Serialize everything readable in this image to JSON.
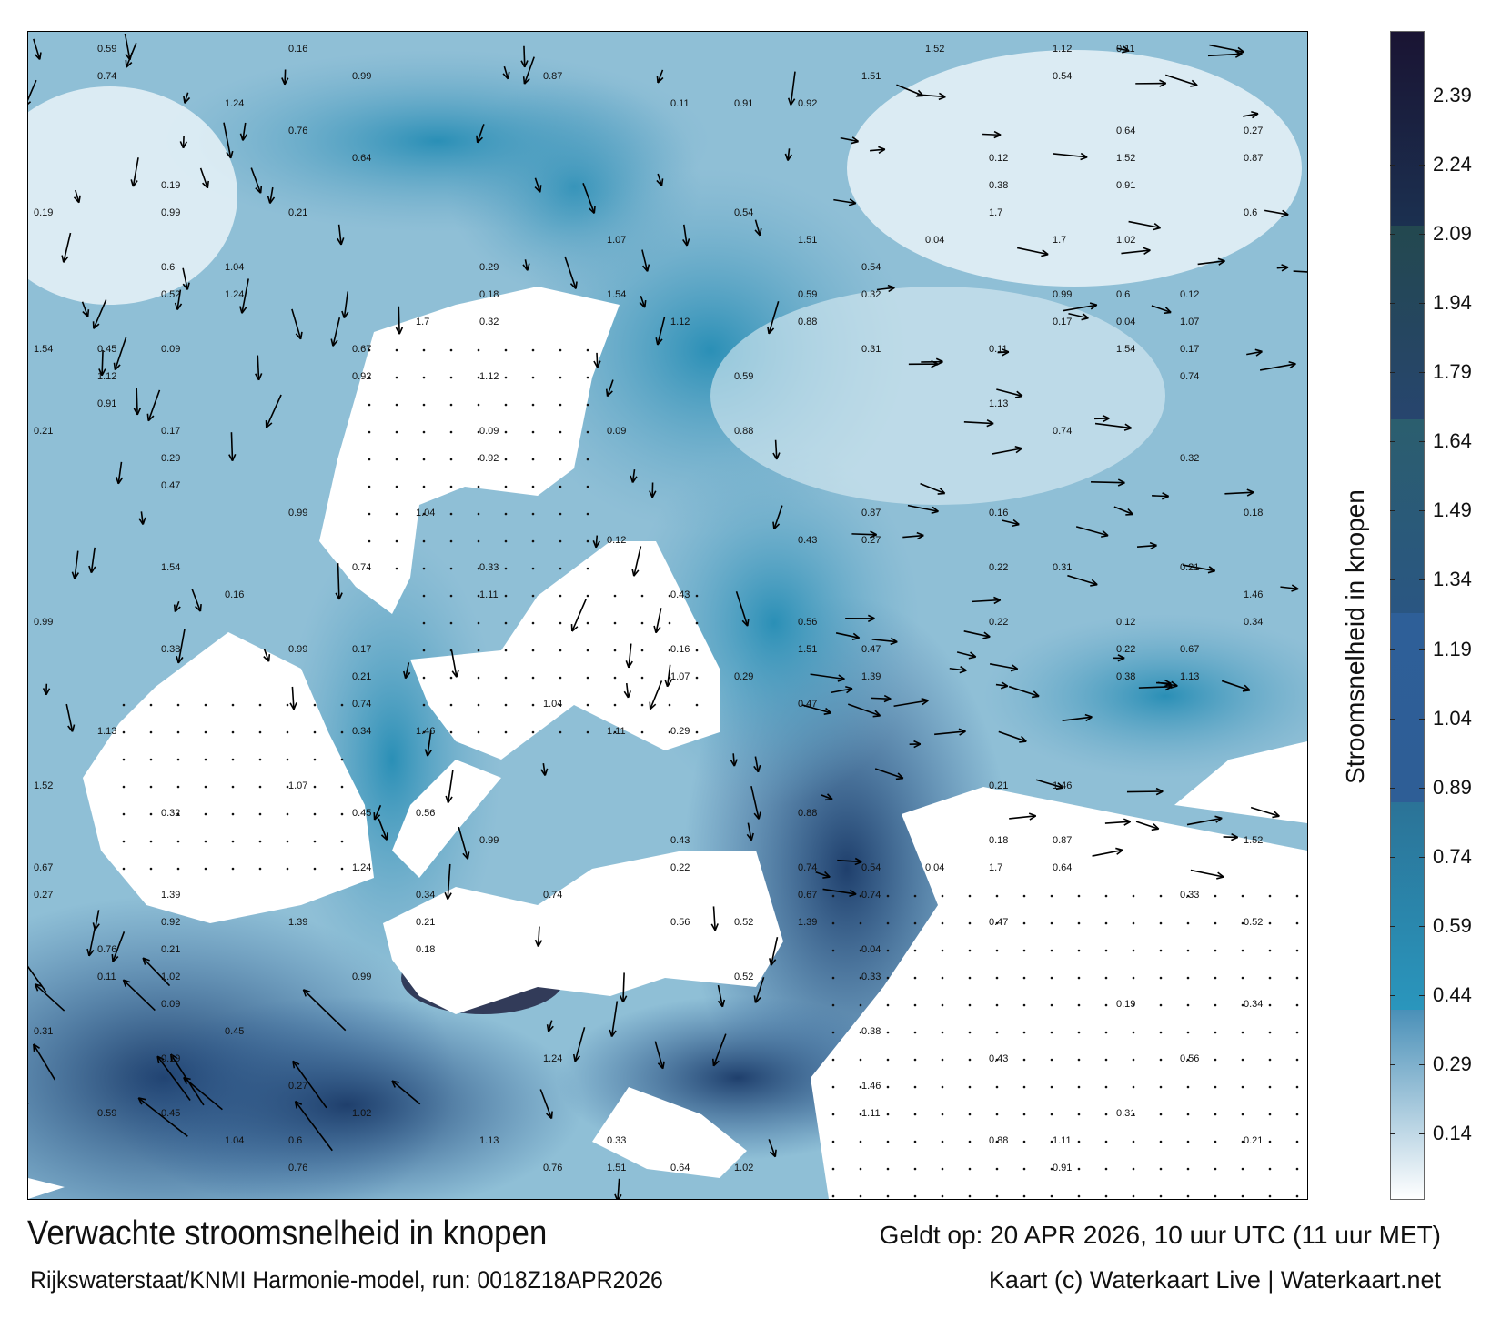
{
  "map": {
    "title": "Verwachte stroomsnelheid in knopen",
    "subtitle": "Rijkswaterstaat/KNMI Harmonie-model, run: 0018Z18APR2026",
    "valid_time": "Geldt op: 20 APR 2026, 10 uur UTC (11 uur MET)",
    "credit": "Kaart (c) Waterkaart Live | Waterkaart.net",
    "land_color": "#ffffff",
    "arrow_color": "#000000",
    "sample_speed_labels": [
      "0.34",
      "0.52",
      "0.67",
      "0.74",
      "0.54",
      "0.22",
      "0.04",
      "0.16",
      "0.09",
      "0.88",
      "1.51",
      "0.59",
      "0.43",
      "0.32",
      "0.27",
      "0.38",
      "0.19",
      "0.11",
      "0.92",
      "1.12",
      "1.02",
      "0.74",
      "0.31",
      "0.21",
      "0.56",
      "1.46",
      "1.39",
      "1.52",
      "0.99",
      "1.07",
      "1.13",
      "0.76",
      "0.87",
      "0.91",
      "1.24",
      "1.54",
      "1.7",
      "0.47",
      "0.99",
      "0.21",
      "1.04",
      "0.18",
      "0.33",
      "0.6",
      "1.11",
      "0.17",
      "0.29",
      "0.12",
      "0.64",
      "0.45"
    ]
  },
  "colorbar": {
    "label": "Stroomsnelheid in knopen",
    "ticks": [
      "2.39",
      "2.24",
      "2.09",
      "1.94",
      "1.79",
      "1.64",
      "1.49",
      "1.34",
      "1.19",
      "1.04",
      "0.89",
      "0.74",
      "0.59",
      "0.44",
      "0.29",
      "0.14"
    ],
    "range": [
      0,
      2.53
    ],
    "bands": [
      {
        "from": 0,
        "to": 0.41,
        "colors": [
          "#ffffff",
          "#4a90b8"
        ]
      },
      {
        "from": 0.41,
        "to": 0.86,
        "colors": [
          "#2a96bd",
          "#2b7397"
        ]
      },
      {
        "from": 0.86,
        "to": 1.27,
        "colors": [
          "#2e5e96",
          "#2e5f98"
        ]
      },
      {
        "from": 1.27,
        "to": 1.69,
        "colors": [
          "#2a5682",
          "#2b5e6e"
        ]
      },
      {
        "from": 1.69,
        "to": 2.11,
        "colors": [
          "#27456e",
          "#23484f"
        ]
      },
      {
        "from": 2.11,
        "to": 2.53,
        "colors": [
          "#1b3050",
          "#1a1433"
        ]
      }
    ]
  }
}
